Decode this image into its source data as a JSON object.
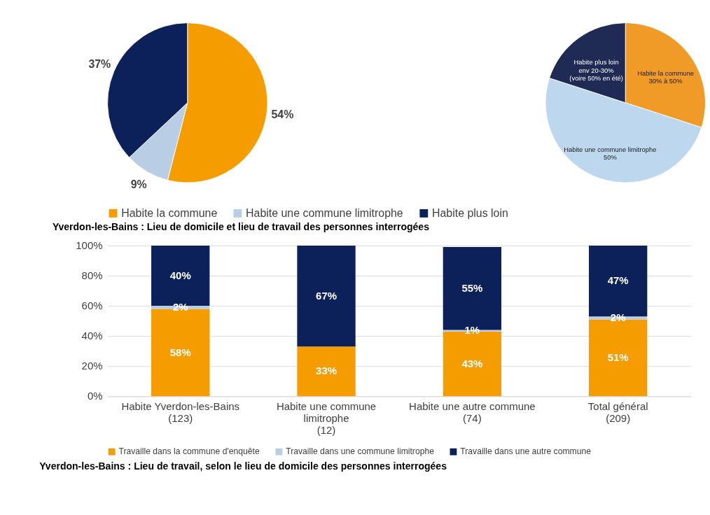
{
  "chart_data": [
    {
      "type": "pie",
      "title": "Yverdon-les-Bains : Lieu de domicile et lieu de travail des personnes interrogées",
      "categories": [
        "Habite la commune",
        "Habite une commune limitrophe",
        "Habite plus loin"
      ],
      "values": [
        54,
        9,
        37
      ],
      "colors": [
        "#f59c00",
        "#b9cde5",
        "#0c2159"
      ],
      "value_labels": [
        "54%",
        "9%",
        "37%"
      ],
      "legend": "bottom"
    },
    {
      "type": "pie",
      "categories": [
        "Habite la commune",
        "Habite une commune limitrophe",
        "Habite plus loin"
      ],
      "values": [
        30,
        50,
        20
      ],
      "colors": [
        "#f09a28",
        "#bdd7ee",
        "#1f2a55"
      ],
      "value_labels": [
        "30% à 50%",
        "50%",
        "env 20-30%\n(voire 50% en été)"
      ]
    },
    {
      "type": "bar",
      "stacked": true,
      "title": "Yverdon-les-Bains : Lieu de travail, selon le lieu de domicile des personnes interrogées",
      "categories": [
        "Habite Yverdon-les-Bains\n(123)",
        "Habite une commune\nlimitrophe\n(12)",
        "Habite une autre commune\n(74)",
        "Total général\n(209)"
      ],
      "series": [
        {
          "name": "Travaille dans la commune d'enquête",
          "color": "#f59c00",
          "values": [
            58,
            33,
            43,
            51
          ],
          "value_labels": [
            "58%",
            "33%",
            "43%",
            "51%"
          ]
        },
        {
          "name": "Travaille dans une commune limitrophe",
          "color": "#b9cde5",
          "values": [
            2,
            0,
            1,
            2
          ],
          "value_labels": [
            "2%",
            null,
            "1%",
            "2%"
          ]
        },
        {
          "name": "Travaille dans une autre commune",
          "color": "#0c2159",
          "values": [
            40,
            67,
            55,
            47
          ],
          "value_labels": [
            "40%",
            "67%",
            "55%",
            "47%"
          ]
        }
      ],
      "ylim": [
        0,
        100
      ],
      "yticks": [
        {
          "value": 0,
          "label": "0%"
        },
        {
          "value": 20,
          "label": "20%"
        },
        {
          "value": 40,
          "label": "40%"
        },
        {
          "value": 60,
          "label": "60%"
        },
        {
          "value": 80,
          "label": "80%"
        },
        {
          "value": 100,
          "label": "100%"
        }
      ],
      "grid": "y",
      "legend": "bottom"
    }
  ]
}
